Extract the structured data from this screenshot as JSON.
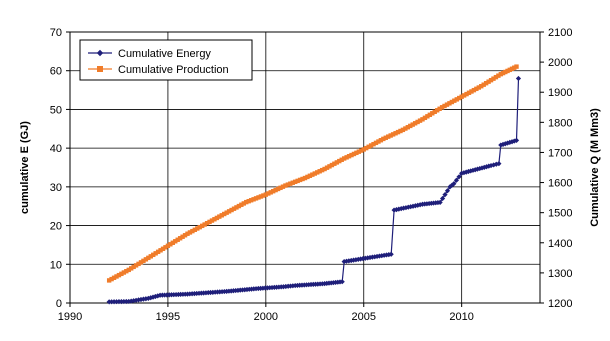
{
  "chart_data": {
    "type": "line",
    "title": "",
    "xlabel": "",
    "ylabel_left": "cumulative E (GJ)",
    "ylabel_right": "Cumulative Q (M Mm3)",
    "xlim": [
      1990,
      2014
    ],
    "ylim_left": [
      0,
      70
    ],
    "ylim_right": [
      1200,
      2100
    ],
    "x_ticks": [
      "1990",
      "1995",
      "2000",
      "2005",
      "2010"
    ],
    "y_left_ticks": [
      "0",
      "10",
      "20",
      "30",
      "40",
      "50",
      "60",
      "70"
    ],
    "y_right_ticks": [
      "1200",
      "1300",
      "1400",
      "1500",
      "1600",
      "1700",
      "1800",
      "1900",
      "2000",
      "2100"
    ],
    "grid": true,
    "legend_position": "top-left",
    "series": [
      {
        "name": "Cumulative Energy",
        "axis": "left",
        "color": "#1f1f7a",
        "marker": "diamond",
        "x": [
          1992,
          1993,
          1994,
          1994.6,
          1996,
          1998,
          1999.5,
          2000.9,
          2001.5,
          2003,
          2003.9,
          2004.0,
          2006.4,
          2006.55,
          2008.0,
          2008.9,
          2009.4,
          2009.6,
          2010.0,
          2011.5,
          2011.9,
          2012.0,
          2012.8,
          2012.9
        ],
        "y": [
          0.3,
          0.4,
          1.2,
          2.0,
          2.3,
          3.0,
          3.7,
          4.2,
          4.5,
          5.0,
          5.5,
          10.7,
          12.6,
          24.0,
          25.5,
          26.0,
          30.0,
          30.8,
          33.5,
          35.5,
          36.0,
          40.8,
          42.0,
          58.0
        ]
      },
      {
        "name": "Cumulative Production",
        "axis": "right",
        "color": "#f07c2a",
        "marker": "square",
        "x": [
          1992,
          1993,
          1994,
          1995,
          1996,
          1997,
          1998,
          1999,
          2000,
          2001,
          2002,
          2003,
          2004,
          2005,
          2006,
          2007,
          2008,
          2009,
          2010,
          2011,
          2012,
          2012.8
        ],
        "y": [
          1275,
          1310,
          1350,
          1390,
          1430,
          1465,
          1500,
          1535,
          1560,
          1590,
          1615,
          1645,
          1680,
          1710,
          1745,
          1775,
          1810,
          1850,
          1885,
          1920,
          1960,
          1985
        ]
      }
    ]
  }
}
